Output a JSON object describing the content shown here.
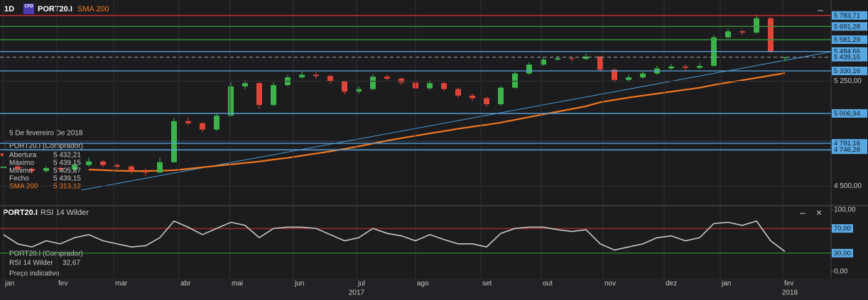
{
  "chart_data": [
    {
      "type": "candlestick",
      "timeframe": "1D",
      "badge": "CFD",
      "title": "PORT20.I",
      "log_scale": true,
      "ylim": [
        4371,
        5917
      ],
      "yticks": [
        {
          "value": 5250,
          "label": "5 250,00"
        },
        {
          "value": 4500,
          "label": "4 500,00"
        }
      ],
      "up_color": "#3cb44b",
      "down_color": "#e0453a",
      "open": [
        4620,
        4630,
        4615,
        4600,
        4620,
        4610,
        4640,
        4665,
        4640,
        4630,
        4600,
        4590,
        4660,
        4950,
        4935,
        4890,
        4990,
        5210,
        5235,
        5070,
        5220,
        5280,
        5300,
        5290,
        5250,
        5170,
        5190,
        5285,
        5270,
        5240,
        5195,
        5235,
        5190,
        5140,
        5120,
        5075,
        5200,
        5310,
        5380,
        5420,
        5430,
        5425,
        5445,
        5340,
        5260,
        5280,
        5310,
        5350,
        5365,
        5355,
        5370,
        5600,
        5650,
        5640,
        5760,
        5432.21
      ],
      "high": [
        4645,
        4640,
        4625,
        4635,
        4630,
        4655,
        4690,
        4675,
        4655,
        4640,
        4615,
        4690,
        4975,
        4980,
        4945,
        5010,
        5240,
        5260,
        5245,
        5240,
        5300,
        5325,
        5320,
        5300,
        5260,
        5210,
        5305,
        5300,
        5280,
        5250,
        5255,
        5245,
        5200,
        5155,
        5130,
        5215,
        5325,
        5400,
        5440,
        5450,
        5445,
        5470,
        5450,
        5350,
        5300,
        5325,
        5370,
        5385,
        5380,
        5395,
        5620,
        5670,
        5665,
        5790,
        5770,
        5439.15
      ],
      "low": [
        4605,
        4600,
        4585,
        4590,
        4595,
        4600,
        4630,
        4625,
        4615,
        4580,
        4570,
        4585,
        4655,
        4920,
        4870,
        4880,
        4985,
        5190,
        5040,
        5060,
        5210,
        5270,
        5270,
        5230,
        5150,
        5155,
        5180,
        5255,
        5220,
        5180,
        5185,
        5175,
        5125,
        5100,
        5055,
        5065,
        5195,
        5300,
        5370,
        5410,
        5405,
        5415,
        5320,
        5240,
        5245,
        5270,
        5300,
        5340,
        5335,
        5345,
        5365,
        5590,
        5620,
        5630,
        5470,
        5405.87
      ],
      "close": [
        4630,
        4615,
        4600,
        4620,
        4610,
        4640,
        4665,
        4640,
        4630,
        4600,
        4590,
        4660,
        4950,
        4935,
        4890,
        4990,
        5210,
        5235,
        5070,
        5220,
        5280,
        5300,
        5290,
        5250,
        5170,
        5190,
        5285,
        5270,
        5240,
        5195,
        5235,
        5190,
        5140,
        5120,
        5075,
        5200,
        5310,
        5380,
        5420,
        5430,
        5425,
        5445,
        5340,
        5260,
        5280,
        5310,
        5350,
        5365,
        5355,
        5370,
        5600,
        5650,
        5640,
        5760,
        5480,
        5439.15
      ],
      "sma": {
        "name": "SMA 200",
        "color": "#f07820",
        "values": [
          null,
          null,
          null,
          null,
          null,
          null,
          4610,
          4606,
          4602,
          4600,
          4600,
          4602,
          4605,
          4615,
          4625,
          4635,
          4645,
          4655,
          4665,
          4678,
          4690,
          4705,
          4720,
          4735,
          4752,
          4770,
          4790,
          4810,
          4828,
          4845,
          4862,
          4878,
          4895,
          4910,
          4924,
          4940,
          4960,
          4980,
          5000,
          5020,
          5040,
          5060,
          5090,
          5108,
          5125,
          5140,
          5155,
          5170,
          5185,
          5200,
          5222,
          5240,
          5258,
          5276,
          5295,
          5313.12
        ]
      },
      "price_levels": [
        {
          "value": 5783.71,
          "label": "5 783,71",
          "color": "#d03030",
          "style": "solid"
        },
        {
          "value": 5691.28,
          "label": "5 691,28",
          "color": "#3c9a3c",
          "style": "solid"
        },
        {
          "value": 5581.29,
          "label": "5 581,29",
          "color": "#3c9a3c",
          "style": "solid"
        },
        {
          "value": 5484.66,
          "label": "5 484,66",
          "color": "#5aa7e0",
          "style": "solid"
        },
        {
          "value": 5439.15,
          "label": "5 439,15",
          "color": "#9aa4b0",
          "style": "dashed"
        },
        {
          "value": 5330.16,
          "label": "5 330,16",
          "color": "#5aa7e0",
          "style": "solid"
        },
        {
          "value": 5006.94,
          "label": "5 006,94",
          "color": "#5aa7e0",
          "style": "solid"
        },
        {
          "value": 4791.16,
          "label": "4 791,16",
          "color": "#5aa7e0",
          "style": "solid"
        },
        {
          "value": 4746.28,
          "label": "4 746,28",
          "color": "#5aa7e0",
          "style": "solid"
        }
      ],
      "xticks": [
        "jan",
        "fev",
        "mar",
        "abr",
        "mai",
        "jun",
        "jul",
        "ago",
        "set",
        "out",
        "nov",
        "dez",
        "jan",
        "fev"
      ],
      "year_labels": [
        "2017",
        "2018"
      ],
      "info": {
        "date": "5 De fevereiro De 2018",
        "instrument": "PORT20.I (Comprador)",
        "rows": [
          {
            "label": "Abertura",
            "value": "5 432,21"
          },
          {
            "label": "Máximo",
            "value": "5 439,15"
          },
          {
            "label": "Mínimo",
            "value": "5 405,87"
          },
          {
            "label": "Fecho",
            "value": "5 439,15"
          },
          {
            "label": "SMA 200",
            "value": "5 313,12"
          }
        ]
      }
    },
    {
      "type": "line",
      "title": "PORT20.I",
      "ylim": [
        -11.5,
        104.6
      ],
      "yticks": [
        {
          "value": 100,
          "label": "100,00"
        },
        {
          "value": 0,
          "label": "0,00"
        }
      ],
      "series": [
        {
          "name": "RSI 14 Wilder",
          "color": "#c8c8c8",
          "values": [
            60,
            45,
            40,
            50,
            45,
            55,
            60,
            50,
            45,
            40,
            42,
            55,
            82,
            72,
            60,
            70,
            80,
            75,
            55,
            70,
            72,
            72,
            70,
            60,
            50,
            55,
            70,
            62,
            58,
            50,
            60,
            52,
            45,
            45,
            40,
            62,
            70,
            72,
            72,
            68,
            65,
            68,
            45,
            35,
            40,
            45,
            55,
            58,
            50,
            55,
            78,
            80,
            75,
            82,
            50,
            32.67
          ]
        }
      ],
      "levels": [
        {
          "value": 70,
          "label": "70,00",
          "color": "#d03030"
        },
        {
          "value": 30,
          "label": "30,00",
          "color": "#3c9a3c"
        }
      ],
      "info": {
        "instrument": "PORT20.I (Comprador)",
        "rows": [
          {
            "label": "RSI 14 Wilder",
            "value": "32,67"
          }
        ],
        "note": "Preço indicativo"
      }
    }
  ]
}
